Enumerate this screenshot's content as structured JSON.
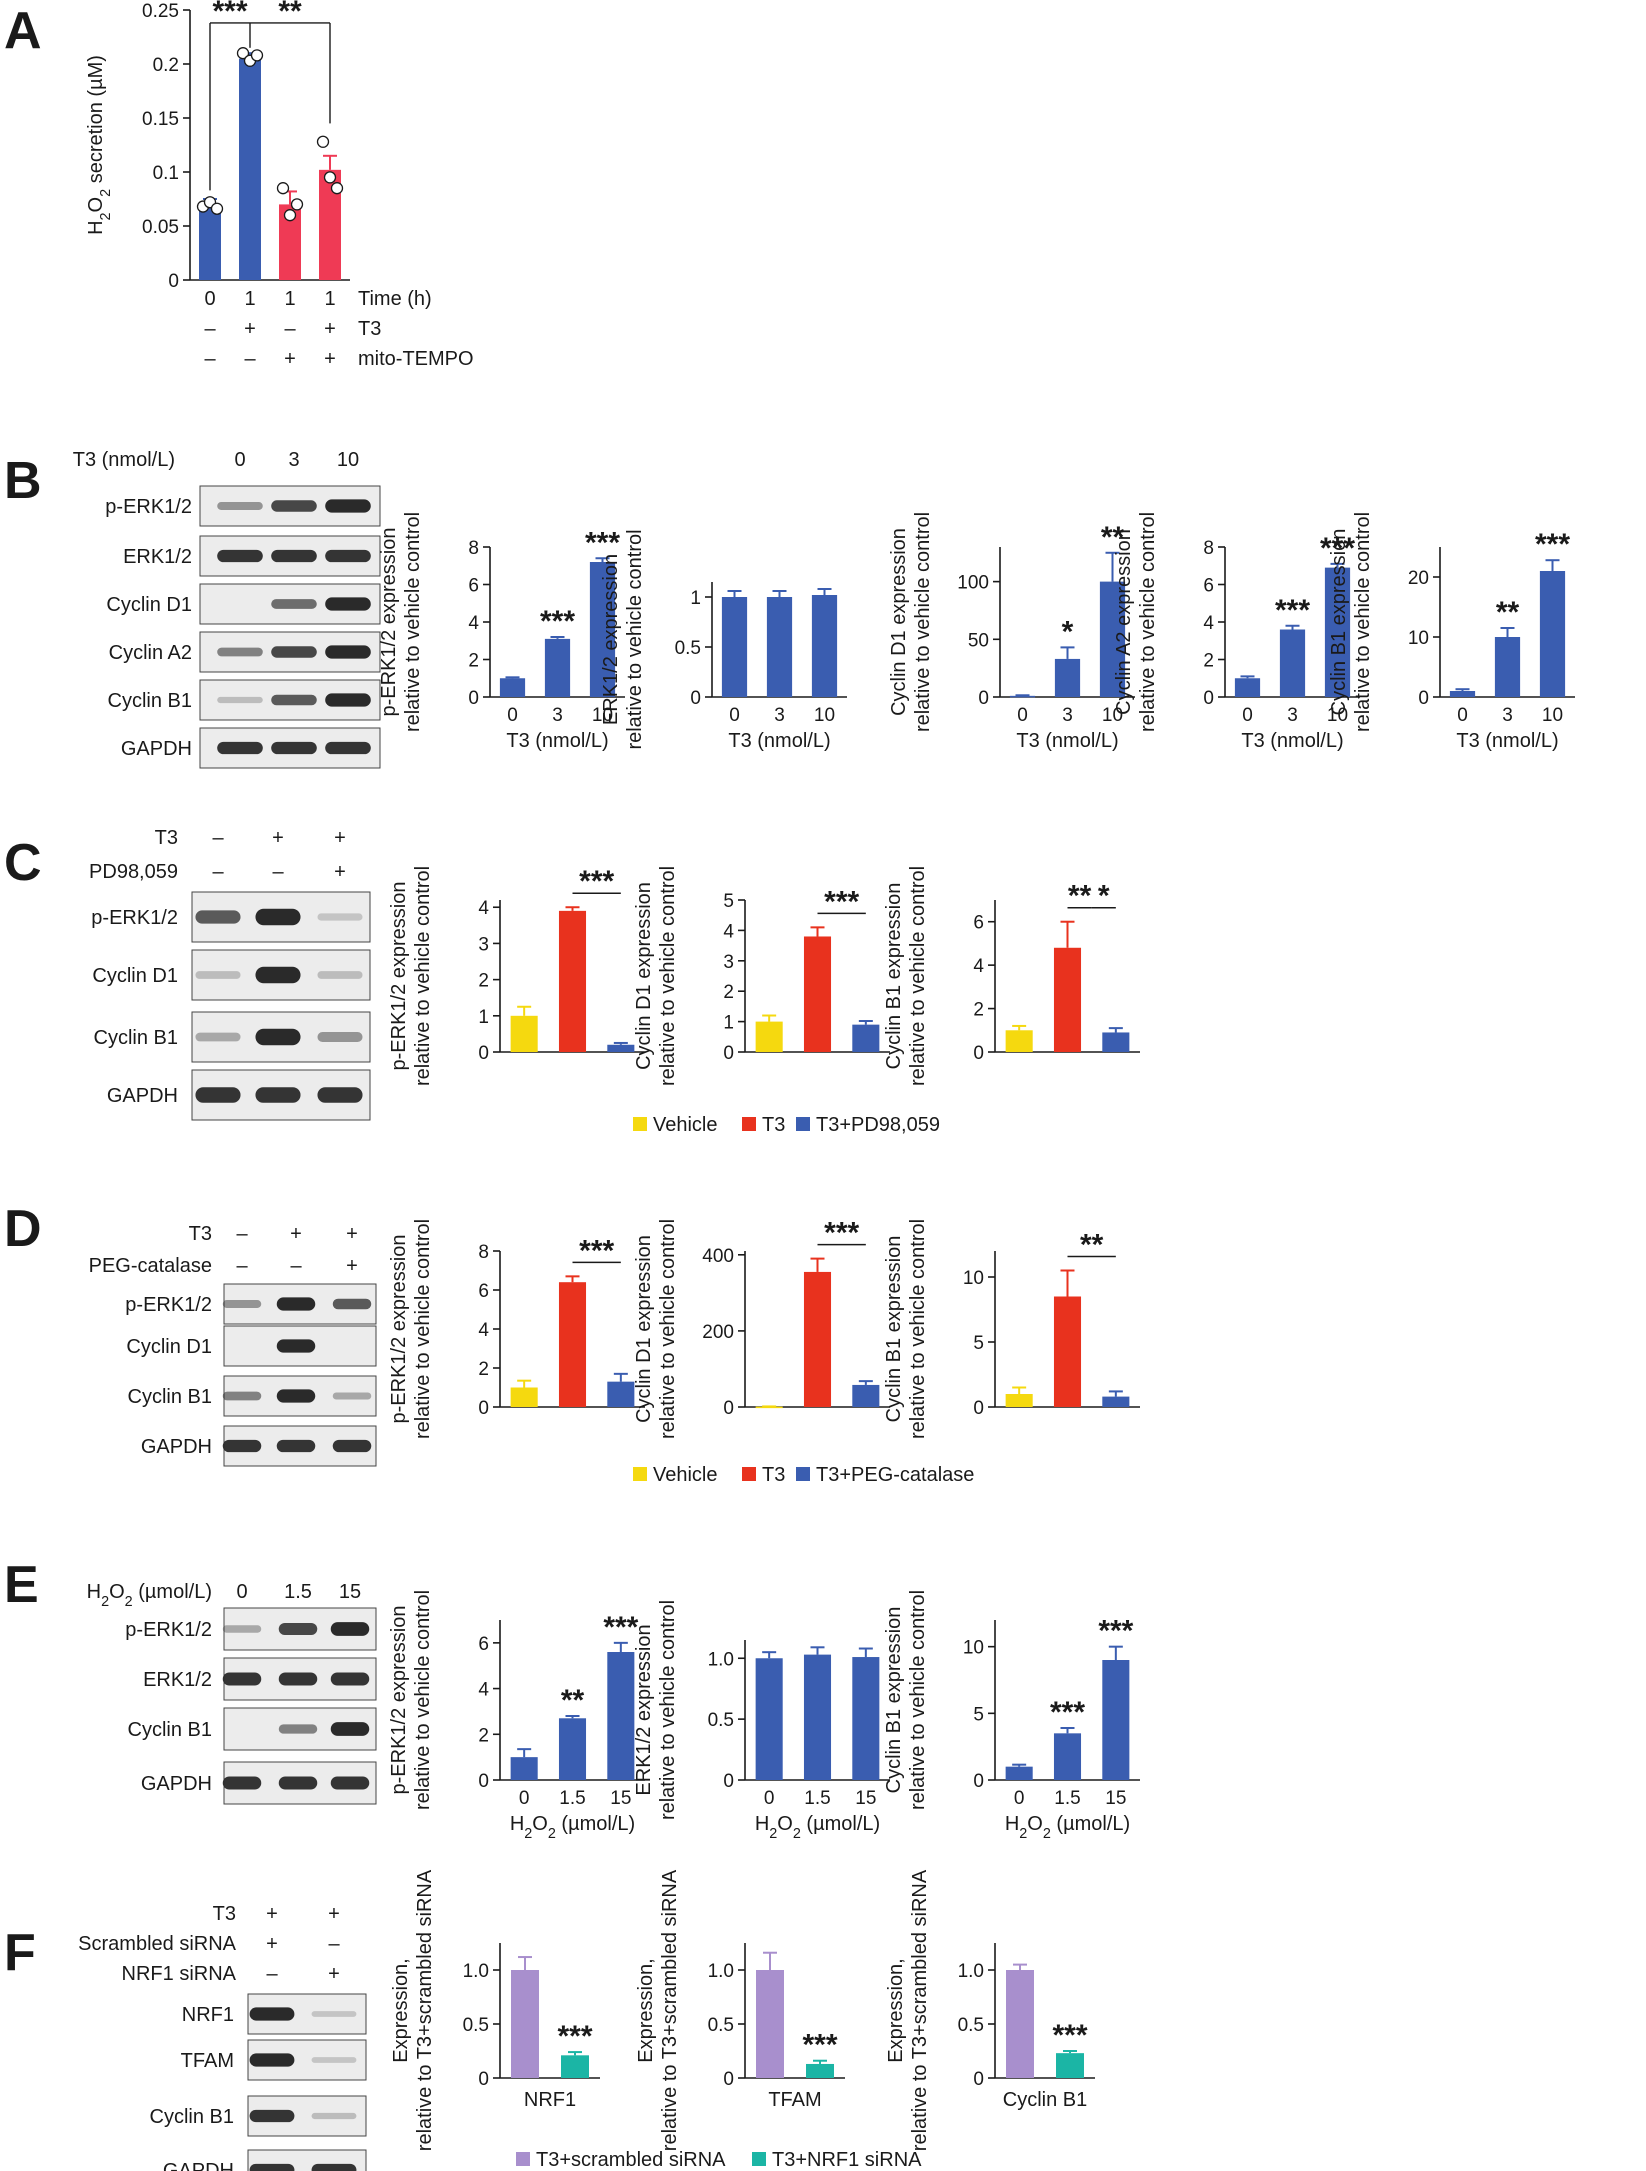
{
  "colors": {
    "blue": "#3a5db0",
    "red": "#e8321e",
    "pink": "#ef3a55",
    "yellow": "#f5d90f",
    "purple": "#a88fcd",
    "teal": "#1bb5a5",
    "blot_bg": "#ececec",
    "blot_band": "#2a2a2a"
  },
  "panels": {
    "A": {
      "letter": "A",
      "rows": [
        {
          "label": "Time (h)",
          "values": [
            "0",
            "1",
            "1",
            "1"
          ]
        },
        {
          "label": "T3",
          "values": [
            "–",
            "+",
            "–",
            "+"
          ]
        },
        {
          "label": "mito-TEMPO",
          "values": [
            "–",
            "–",
            "+",
            "+"
          ]
        }
      ]
    },
    "B": {
      "letter": "B",
      "blot_header_label": "T3 (nmol/L)",
      "blot_header_values": [
        "0",
        "3",
        "10"
      ],
      "blot_rows": [
        "p-ERK1/2",
        "ERK1/2",
        "Cyclin D1",
        "Cyclin A2",
        "Cyclin B1",
        "GAPDH"
      ]
    },
    "C": {
      "letter": "C",
      "treat_rows": [
        {
          "label": "T3",
          "values": [
            "–",
            "+",
            "+"
          ]
        },
        {
          "label": "PD98,059",
          "values": [
            "–",
            "–",
            "+"
          ]
        }
      ],
      "blot_rows": [
        "p-ERK1/2",
        "Cyclin D1",
        "Cyclin B1",
        "GAPDH"
      ],
      "legend": [
        {
          "label": "Vehicle",
          "color": "#f5d90f"
        },
        {
          "label": "T3",
          "color": "#e8321e"
        },
        {
          "label": "T3+PD98,059",
          "color": "#3a5db0"
        }
      ]
    },
    "D": {
      "letter": "D",
      "treat_rows": [
        {
          "label": "T3",
          "values": [
            "–",
            "+",
            "+"
          ]
        },
        {
          "label": "PEG-catalase",
          "values": [
            "–",
            "–",
            "+"
          ]
        }
      ],
      "blot_rows": [
        "p-ERK1/2",
        "Cyclin D1",
        "Cyclin B1",
        "GAPDH"
      ],
      "legend": [
        {
          "label": "Vehicle",
          "color": "#f5d90f"
        },
        {
          "label": "T3",
          "color": "#e8321e"
        },
        {
          "label": "T3+PEG-catalase",
          "color": "#3a5db0"
        }
      ]
    },
    "E": {
      "letter": "E",
      "blot_header_label": "H2O2 (µmol/L)",
      "blot_header_values": [
        "0",
        "1.5",
        "15"
      ],
      "blot_rows": [
        "p-ERK1/2",
        "ERK1/2",
        "Cyclin B1",
        "GAPDH"
      ]
    },
    "F": {
      "letter": "F",
      "treat_rows": [
        {
          "label": "T3",
          "values": [
            "+",
            "+"
          ]
        },
        {
          "label": "Scrambled siRNA",
          "values": [
            "+",
            "–"
          ]
        },
        {
          "label": "NRF1 siRNA",
          "values": [
            "–",
            "+"
          ]
        }
      ],
      "blot_rows": [
        "NRF1",
        "TFAM",
        "Cyclin B1",
        "GAPDH"
      ],
      "legend": [
        {
          "label": "T3+scrambled siRNA",
          "color": "#a88fcd"
        },
        {
          "label": "T3+NRF1 siRNA",
          "color": "#1bb5a5"
        }
      ]
    }
  },
  "chart_data": [
    {
      "id": "A",
      "type": "bar",
      "ylabel": "H2O2 secretion (µM)",
      "ylim": [
        0,
        0.25
      ],
      "yticks": [
        "0",
        "0.05",
        "0.1",
        "0.15",
        "0.2",
        "0.25"
      ],
      "categories": [
        "0",
        "1",
        "1",
        "1"
      ],
      "values": [
        0.07,
        0.205,
        0.07,
        0.102
      ],
      "errors": [
        0.005,
        0.005,
        0.012,
        0.013
      ],
      "bar_colors": [
        "#3a5db0",
        "#3a5db0",
        "#ef3a55",
        "#ef3a55"
      ],
      "points": [
        [
          0.068,
          0.072,
          0.066
        ],
        [
          0.21,
          0.203,
          0.208
        ],
        [
          0.085,
          0.06,
          0.07
        ],
        [
          0.128,
          0.095,
          0.085
        ]
      ],
      "annotations": [
        {
          "text": "***",
          "from": 0,
          "to": 1
        },
        {
          "text": "**",
          "from": 1,
          "to": 3
        }
      ]
    },
    {
      "id": "B1",
      "type": "bar",
      "ylabel": "p-ERK1/2 expression relative to vehicle control",
      "xlabel": "T3 (nmol/L)",
      "categories": [
        "0",
        "3",
        "10"
      ],
      "values": [
        1,
        3.1,
        7.2
      ],
      "errors": [
        0.05,
        0.1,
        0.2
      ],
      "ylim": [
        0,
        8
      ],
      "yticks": [
        "0",
        "2",
        "4",
        "6",
        "8"
      ],
      "stars": [
        "",
        "***",
        "***"
      ]
    },
    {
      "id": "B2",
      "type": "bar",
      "ylabel": "ERK1/2 expression relative to vehicle control",
      "xlabel": "T3 (nmol/L)",
      "categories": [
        "0",
        "3",
        "10"
      ],
      "values": [
        1,
        1,
        1.02
      ],
      "errors": [
        0.06,
        0.06,
        0.06
      ],
      "ylim": [
        0,
        1.15
      ],
      "yticks": [
        "0",
        "0.5",
        "1"
      ],
      "stars": [
        "",
        "",
        ""
      ]
    },
    {
      "id": "B3",
      "type": "bar",
      "ylabel": "Cyclin D1 expression relative to vehicle control",
      "xlabel": "T3 (nmol/L)",
      "categories": [
        "0",
        "3",
        "10"
      ],
      "values": [
        1,
        33,
        100
      ],
      "errors": [
        0.5,
        10,
        25
      ],
      "ylim": [
        0,
        130
      ],
      "yticks": [
        "0",
        "50",
        "100"
      ],
      "stars": [
        "",
        "*",
        "**"
      ]
    },
    {
      "id": "B4",
      "type": "bar",
      "ylabel": "Cyclin A2 expression relative to vehicle control",
      "xlabel": "T3 (nmol/L)",
      "categories": [
        "0",
        "3",
        "10"
      ],
      "values": [
        1,
        3.6,
        6.9
      ],
      "errors": [
        0.1,
        0.2,
        0.2
      ],
      "ylim": [
        0,
        8
      ],
      "yticks": [
        "0",
        "2",
        "4",
        "6",
        "8"
      ],
      "stars": [
        "",
        "***",
        "***"
      ]
    },
    {
      "id": "B5",
      "type": "bar",
      "ylabel": "Cyclin B1 expression relative to vehicle control",
      "xlabel": "T3 (nmol/L)",
      "categories": [
        "0",
        "3",
        "10"
      ],
      "values": [
        1,
        10,
        21
      ],
      "errors": [
        0.3,
        1.5,
        1.8
      ],
      "ylim": [
        0,
        25
      ],
      "yticks": [
        "0",
        "10",
        "20"
      ],
      "stars": [
        "",
        "**",
        "***"
      ]
    },
    {
      "id": "C1",
      "type": "bar",
      "ylabel": "p-ERK1/2 expression relative to vehicle control",
      "categories": [
        "Vehicle",
        "T3",
        "T3+PD98,059"
      ],
      "values": [
        1,
        3.9,
        0.2
      ],
      "errors": [
        0.25,
        0.1,
        0.05
      ],
      "ylim": [
        0,
        4.2
      ],
      "yticks": [
        "0",
        "1",
        "2",
        "3",
        "4"
      ],
      "bar_colors": [
        "#f5d90f",
        "#e8321e",
        "#3a5db0"
      ],
      "brackets": [
        {
          "text": "***",
          "from": 1,
          "to": 2
        }
      ]
    },
    {
      "id": "C2",
      "type": "bar",
      "ylabel": "Cyclin D1 expression relative to vehicle control",
      "categories": [
        "Vehicle",
        "T3",
        "T3+PD98,059"
      ],
      "values": [
        1,
        3.8,
        0.9
      ],
      "errors": [
        0.2,
        0.3,
        0.12
      ],
      "ylim": [
        0,
        5
      ],
      "yticks": [
        "0",
        "1",
        "2",
        "3",
        "4",
        "5"
      ],
      "bar_colors": [
        "#f5d90f",
        "#e8321e",
        "#3a5db0"
      ],
      "brackets": [
        {
          "text": "***",
          "from": 1,
          "to": 2
        }
      ]
    },
    {
      "id": "C3",
      "type": "bar",
      "ylabel": "Cyclin B1 expression relative to vehicle control",
      "categories": [
        "Vehicle",
        "T3",
        "T3+PD98,059"
      ],
      "values": [
        1,
        4.8,
        0.9
      ],
      "errors": [
        0.2,
        1.2,
        0.2
      ],
      "ylim": [
        0,
        7
      ],
      "yticks": [
        "0",
        "2",
        "4",
        "6"
      ],
      "bar_colors": [
        "#f5d90f",
        "#e8321e",
        "#3a5db0"
      ],
      "brackets": [
        {
          "text": "**",
          "from": 1,
          "to": 1.5
        },
        {
          "text": "*",
          "from": 1.5,
          "to": 2
        }
      ]
    },
    {
      "id": "D1",
      "type": "bar",
      "ylabel": "p-ERK1/2 expression relative to vehicle control",
      "categories": [
        "Vehicle",
        "T3",
        "T3+PEG-catalase"
      ],
      "values": [
        1,
        6.4,
        1.3
      ],
      "errors": [
        0.35,
        0.3,
        0.4
      ],
      "ylim": [
        0,
        8
      ],
      "yticks": [
        "0",
        "2",
        "4",
        "6",
        "8"
      ],
      "bar_colors": [
        "#f5d90f",
        "#e8321e",
        "#3a5db0"
      ],
      "brackets": [
        {
          "text": "***",
          "from": 1,
          "to": 2
        }
      ]
    },
    {
      "id": "D2",
      "type": "bar",
      "ylabel": "Cyclin D1 expression relative to vehicle control",
      "categories": [
        "Vehicle",
        "T3",
        "T3+PEG-catalase"
      ],
      "values": [
        1,
        355,
        58
      ],
      "errors": [
        0.5,
        35,
        10
      ],
      "ylim": [
        0,
        410
      ],
      "yticks": [
        "0",
        "200",
        "400"
      ],
      "bar_colors": [
        "#f5d90f",
        "#e8321e",
        "#3a5db0"
      ],
      "brackets": [
        {
          "text": "***",
          "from": 1,
          "to": 2
        }
      ]
    },
    {
      "id": "D3",
      "type": "bar",
      "ylabel": "Cyclin B1 expression relative to vehicle control",
      "categories": [
        "Vehicle",
        "T3",
        "T3+PEG-catalase"
      ],
      "values": [
        1,
        8.5,
        0.8
      ],
      "errors": [
        0.5,
        2,
        0.4
      ],
      "ylim": [
        0,
        12
      ],
      "yticks": [
        "0",
        "5",
        "10"
      ],
      "bar_colors": [
        "#f5d90f",
        "#e8321e",
        "#3a5db0"
      ],
      "brackets": [
        {
          "text": "**",
          "from": 1,
          "to": 2
        }
      ]
    },
    {
      "id": "E1",
      "type": "bar",
      "ylabel": "p-ERK1/2 expression relative to vehicle control",
      "xlabel": "H2O2 (µmol/L)",
      "categories": [
        "0",
        "1.5",
        "15"
      ],
      "values": [
        1,
        2.7,
        5.6
      ],
      "errors": [
        0.35,
        0.1,
        0.4
      ],
      "ylim": [
        0,
        7
      ],
      "yticks": [
        "0",
        "2",
        "4",
        "6"
      ],
      "stars": [
        "",
        "**",
        "***"
      ]
    },
    {
      "id": "E2",
      "type": "bar",
      "ylabel": "ERK1/2 expression relative to vehicle control",
      "xlabel": "H2O2 (µmol/L)",
      "categories": [
        "0",
        "1.5",
        "15"
      ],
      "values": [
        1,
        1.03,
        1.01
      ],
      "errors": [
        0.05,
        0.06,
        0.07
      ],
      "ylim": [
        0,
        1.15
      ],
      "yticks": [
        "0",
        "0.5",
        "1.0"
      ],
      "stars": [
        "",
        "",
        ""
      ]
    },
    {
      "id": "E3",
      "type": "bar",
      "ylabel": "Cyclin B1 expression relative to vehicle control",
      "xlabel": "H2O2 (µmol/L)",
      "categories": [
        "0",
        "1.5",
        "15"
      ],
      "values": [
        1,
        3.5,
        9
      ],
      "errors": [
        0.15,
        0.4,
        1
      ],
      "ylim": [
        0,
        12
      ],
      "yticks": [
        "0",
        "5",
        "10"
      ],
      "stars": [
        "",
        "***",
        "***"
      ]
    },
    {
      "id": "F1",
      "type": "bar",
      "ylabel": "Expression, relative to T3+scrambled siRNA",
      "xlabel": "NRF1",
      "categories": [
        "T3+scrambled siRNA",
        "T3+NRF1 siRNA"
      ],
      "values": [
        1,
        0.21
      ],
      "errors": [
        0.12,
        0.03
      ],
      "ylim": [
        0,
        1.25
      ],
      "yticks": [
        "0",
        "0.5",
        "1.0"
      ],
      "bar_colors": [
        "#a88fcd",
        "#1bb5a5"
      ],
      "stars": [
        "",
        "***"
      ]
    },
    {
      "id": "F2",
      "type": "bar",
      "ylabel": "Expression, relative to T3+scrambled siRNA",
      "xlabel": "TFAM",
      "categories": [
        "T3+scrambled siRNA",
        "T3+NRF1 siRNA"
      ],
      "values": [
        1,
        0.13
      ],
      "errors": [
        0.16,
        0.03
      ],
      "ylim": [
        0,
        1.25
      ],
      "yticks": [
        "0",
        "0.5",
        "1.0"
      ],
      "bar_colors": [
        "#a88fcd",
        "#1bb5a5"
      ],
      "stars": [
        "",
        "***"
      ]
    },
    {
      "id": "F3",
      "type": "bar",
      "ylabel": "Expression, relative to T3+scrambled siRNA",
      "xlabel": "Cyclin B1",
      "categories": [
        "T3+scrambled siRNA",
        "T3+NRF1 siRNA"
      ],
      "values": [
        1,
        0.23
      ],
      "errors": [
        0.05,
        0.02
      ],
      "ylim": [
        0,
        1.25
      ],
      "yticks": [
        "0",
        "0.5",
        "1.0"
      ],
      "bar_colors": [
        "#a88fcd",
        "#1bb5a5"
      ],
      "stars": [
        "",
        "***"
      ]
    }
  ]
}
